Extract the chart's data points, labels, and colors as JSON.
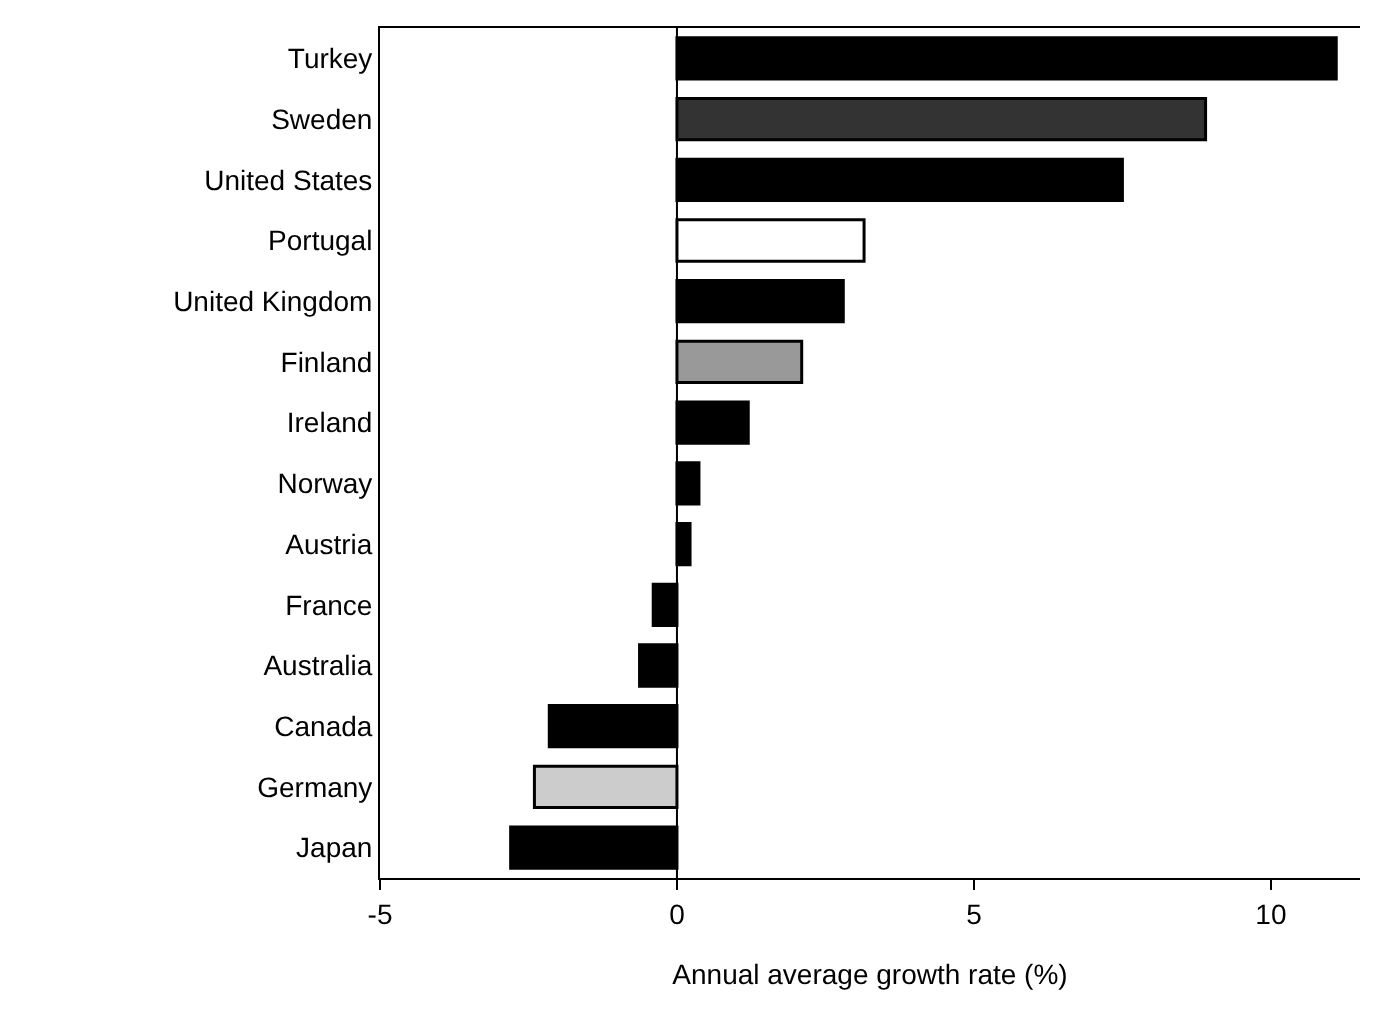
{
  "chart_data": {
    "type": "bar",
    "orientation": "horizontal",
    "xlabel": "Annual average growth rate (%)",
    "categories": [
      "Turkey",
      "Sweden",
      "United States",
      "Portugal",
      "United Kingdom",
      "Finland",
      "Ireland",
      "Norway",
      "Austria",
      "France",
      "Australia",
      "Canada",
      "Germany",
      "Japan"
    ],
    "values": [
      11.1,
      8.9,
      7.5,
      3.15,
      2.8,
      2.1,
      1.2,
      0.37,
      0.22,
      -0.4,
      -0.63,
      -2.15,
      -2.4,
      -2.8
    ],
    "colors": [
      "#000000",
      "#333333",
      "#000000",
      "#ffffff",
      "#000000",
      "#999999",
      "#000000",
      "#000000",
      "#000000",
      "#000000",
      "#000000",
      "#000000",
      "#cccccc",
      "#000000"
    ],
    "xlim": [
      -5,
      11.5
    ],
    "ref_lines": [
      {
        "axis": "x",
        "value": 0
      }
    ],
    "xticks": [
      -5,
      0,
      5,
      10
    ],
    "grid": false
  }
}
